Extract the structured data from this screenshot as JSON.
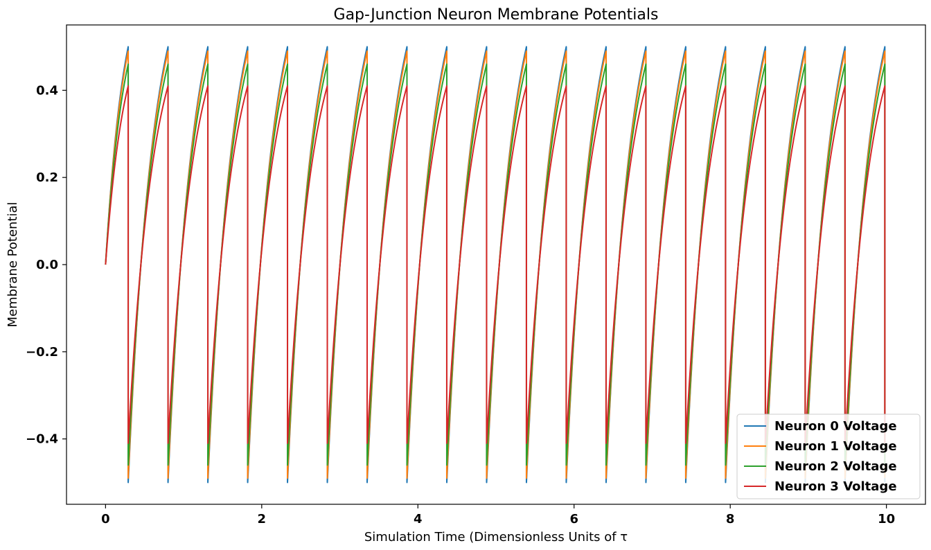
{
  "chart_data": {
    "type": "line",
    "title": "Gap-Junction Neuron Membrane Potentials",
    "xlabel": "Simulation Time (Dimensionless Units of τ",
    "ylabel": "Membrane Potential",
    "xlim": [
      -0.5,
      10.5
    ],
    "ylim": [
      -0.55,
      0.55
    ],
    "xticks": [
      0,
      2,
      4,
      6,
      8,
      10
    ],
    "xtick_labels": [
      "0",
      "2",
      "4",
      "6",
      "8",
      "10"
    ],
    "yticks": [
      -0.4,
      -0.2,
      0.0,
      0.2,
      0.4
    ],
    "ytick_labels": [
      "−0.4",
      "−0.2",
      "0.0",
      "0.2",
      "0.4"
    ],
    "grid": false,
    "legend_position": "bottom-right",
    "first_spike_time": 0.29,
    "spike_times": [
      0.29,
      0.8,
      1.31,
      1.82,
      2.33,
      2.84,
      3.35,
      3.86,
      4.37,
      4.88,
      5.39,
      5.9,
      6.41,
      6.92,
      7.43,
      7.94,
      8.45,
      8.96,
      9.47,
      9.98
    ],
    "series": [
      {
        "name": "Neuron 0 Voltage",
        "color": "#1f77b4",
        "start": 0.0,
        "peak": 0.5,
        "reset": -0.5
      },
      {
        "name": "Neuron 1 Voltage",
        "color": "#ff7f0e",
        "start": 0.0,
        "peak": 0.49,
        "reset": -0.49
      },
      {
        "name": "Neuron 2 Voltage",
        "color": "#2ca02c",
        "start": 0.0,
        "peak": 0.46,
        "reset": -0.46
      },
      {
        "name": "Neuron 3 Voltage",
        "color": "#d62728",
        "start": 0.0,
        "peak": 0.41,
        "reset": -0.41
      }
    ]
  }
}
